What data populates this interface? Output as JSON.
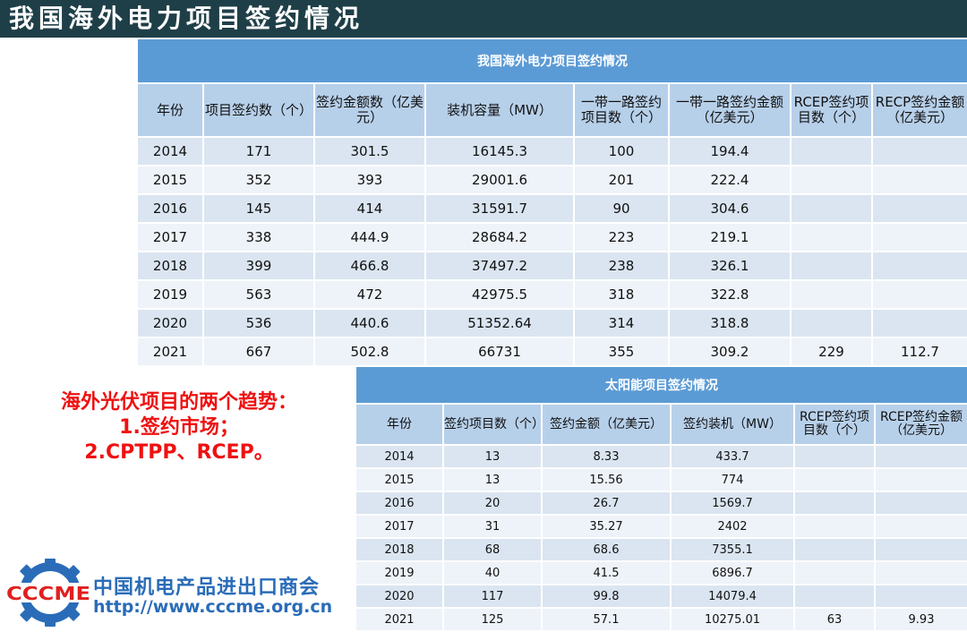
{
  "page_title": "我国海外电力项目签约情况",
  "power_table": {
    "caption": "我国海外电力项目签约情况",
    "headers": [
      "年份",
      "项目签约数（个）",
      "签约金额数（亿美元）",
      "装机容量（MW）",
      "一带一路签约项目数（个）",
      "一带一路签约金额（亿美元）",
      "RCEP签约项目数（个）",
      "RECP签约金额（亿美元）"
    ],
    "rows": [
      [
        "2014",
        "171",
        "301.5",
        "16145.3",
        "100",
        "194.4",
        "",
        ""
      ],
      [
        "2015",
        "352",
        "393",
        "29001.6",
        "201",
        "222.4",
        "",
        ""
      ],
      [
        "2016",
        "145",
        "414",
        "31591.7",
        "90",
        "304.6",
        "",
        ""
      ],
      [
        "2017",
        "338",
        "444.9",
        "28684.2",
        "223",
        "219.1",
        "",
        ""
      ],
      [
        "2018",
        "399",
        "466.8",
        "37497.2",
        "238",
        "326.1",
        "",
        ""
      ],
      [
        "2019",
        "563",
        "472",
        "42975.5",
        "318",
        "322.8",
        "",
        ""
      ],
      [
        "2020",
        "536",
        "440.6",
        "51352.64",
        "314",
        "318.8",
        "",
        ""
      ],
      [
        "2021",
        "667",
        "502.8",
        "66731",
        "355",
        "309.2",
        "229",
        "112.7"
      ]
    ]
  },
  "solar_table": {
    "caption": "太阳能项目签约情况",
    "headers": [
      "年份",
      "签约项目数（个）",
      "签约金额（亿美元）",
      "签约装机（MW）",
      "RCEP签约项目数（个）",
      "RCEP签约金额（亿美元）"
    ],
    "rows": [
      [
        "2014",
        "13",
        "8.33",
        "433.7",
        "",
        ""
      ],
      [
        "2015",
        "13",
        "15.56",
        "774",
        "",
        ""
      ],
      [
        "2016",
        "20",
        "26.7",
        "1569.7",
        "",
        ""
      ],
      [
        "2017",
        "31",
        "35.27",
        "2402",
        "",
        ""
      ],
      [
        "2018",
        "68",
        "68.6",
        "7355.1",
        "",
        ""
      ],
      [
        "2019",
        "40",
        "41.5",
        "6896.7",
        "",
        ""
      ],
      [
        "2020",
        "117",
        "99.8",
        "14079.4",
        "",
        ""
      ],
      [
        "2021",
        "125",
        "57.1",
        "10275.01",
        "63",
        "9.93"
      ]
    ]
  },
  "trend_note": {
    "line1": "海外光伏项目的两个趋势：",
    "line2": "1.签约市场；",
    "line3": "2.CPTPP、RCEP。"
  },
  "logo": {
    "abbr": "CCCME",
    "org_name": "中国机电产品进出口商会",
    "url": "http://www.cccme.org.cn"
  },
  "colors": {
    "title_bar": "#1f3f48",
    "caption": "#5b9bd5",
    "header": "#b7d0ea",
    "row_dark": "#dae5f1",
    "row_light": "#eef3f9",
    "trend_text": "#ee1111",
    "logo_blue": "#2a6cb8",
    "logo_red": "#e02020"
  }
}
